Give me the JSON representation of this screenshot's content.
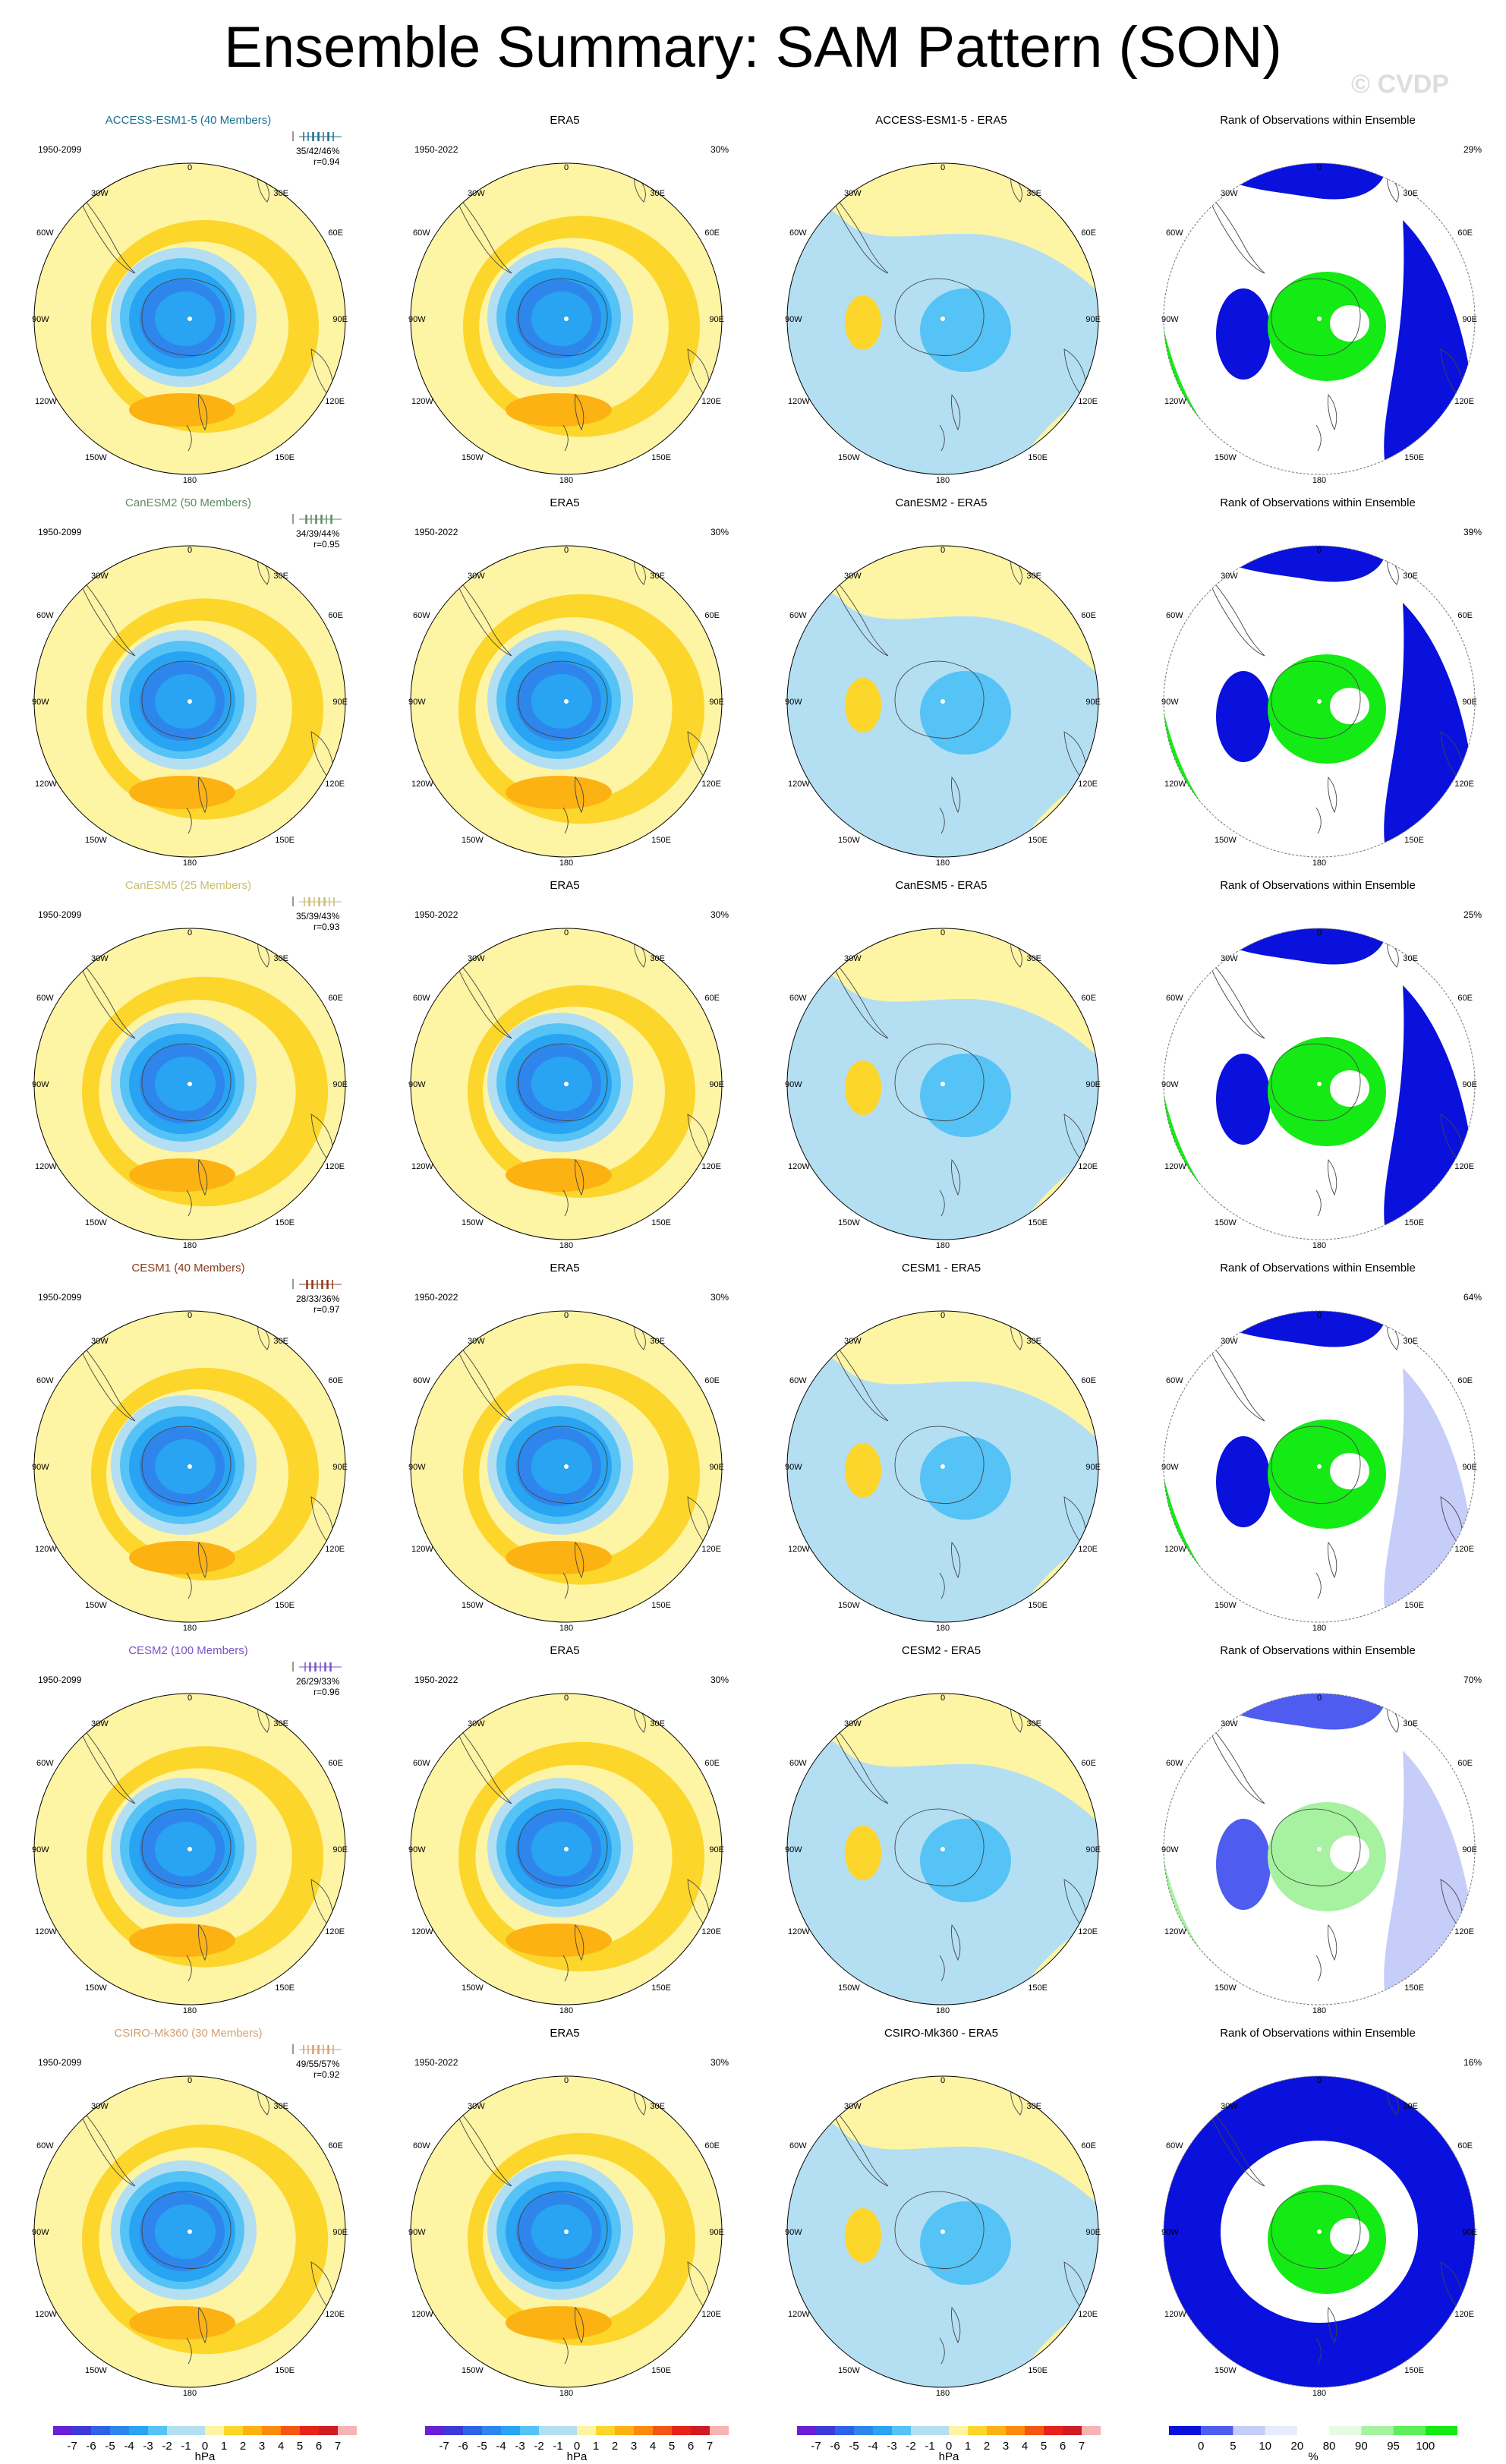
{
  "title": "Ensemble Summary: SAM Pattern (SON)",
  "copyright": "© CVDP",
  "colors": {
    "n7": "#6a1fd6",
    "n6": "#3d3ad9",
    "n5": "#2f62e8",
    "n4": "#2e86ec",
    "n3": "#28a4f2",
    "n2": "#55c3f5",
    "n1": "#b4dff3",
    "p1": "#fdf4a4",
    "p2": "#fcd62b",
    "p3": "#fdb213",
    "p4": "#fb8a0f",
    "p5": "#f45613",
    "p6": "#e6231b",
    "p7": "#cf1c22",
    "p8": "#f7b4b4",
    "rank_blue": "#0a11dc",
    "rank_lblue": "#4e5cf0",
    "rank_vlblue": "#c6cdf8",
    "rank_green": "#14ea14",
    "rank_lgreen": "#a6f2a0",
    "rank_white": "#ffffff"
  },
  "rows": [
    {
      "model": "ACCESS-ESM1-5 (40 Members)",
      "model_color": "#1c6e8f",
      "years": "1950-2099",
      "stats1": "35/42/46%",
      "stats2": "r=0.94",
      "obs_title": "ERA5",
      "obs_years": "1950-2022",
      "obs_pct": "30%",
      "diff_title": "ACCESS-ESM1-5 - ERA5",
      "rank_title": "Rank of Observations within Ensemble",
      "rank_pct": "29%"
    },
    {
      "model": "CanESM2 (50 Members)",
      "model_color": "#5f8b63",
      "years": "1950-2099",
      "stats1": "34/39/44%",
      "stats2": "r=0.95",
      "obs_title": "ERA5",
      "obs_years": "1950-2022",
      "obs_pct": "30%",
      "diff_title": "CanESM2 - ERA5",
      "rank_title": "Rank of Observations within Ensemble",
      "rank_pct": "39%"
    },
    {
      "model": "CanESM5 (25 Members)",
      "model_color": "#c9bf6f",
      "years": "1950-2099",
      "stats1": "35/39/43%",
      "stats2": "r=0.93",
      "obs_title": "ERA5",
      "obs_years": "1950-2022",
      "obs_pct": "30%",
      "diff_title": "CanESM5 - ERA5",
      "rank_title": "Rank of Observations within Ensemble",
      "rank_pct": "25%"
    },
    {
      "model": "CESM1 (40 Members)",
      "model_color": "#8a3b1e",
      "years": "1950-2099",
      "stats1": "28/33/36%",
      "stats2": "r=0.97",
      "obs_title": "ERA5",
      "obs_years": "1950-2022",
      "obs_pct": "30%",
      "diff_title": "CESM1 - ERA5",
      "rank_title": "Rank of Observations within Ensemble",
      "rank_pct": "64%"
    },
    {
      "model": "CESM2 (100 Members)",
      "model_color": "#7b54c6",
      "years": "1950-2099",
      "stats1": "26/29/33%",
      "stats2": "r=0.96",
      "obs_title": "ERA5",
      "obs_years": "1950-2022",
      "obs_pct": "30%",
      "diff_title": "CESM2 - ERA5",
      "rank_title": "Rank of Observations within Ensemble",
      "rank_pct": "70%"
    },
    {
      "model": "CSIRO-Mk360 (30 Members)",
      "model_color": "#d2a06f",
      "years": "1950-2099",
      "stats1": "49/55/57%",
      "stats2": "r=0.92",
      "obs_title": "ERA5",
      "obs_years": "1950-2022",
      "obs_pct": "30%",
      "diff_title": "CSIRO-Mk360 - ERA5",
      "rank_title": "Rank of Observations within Ensemble",
      "rank_pct": "16%"
    }
  ],
  "map_labels": {
    "top": "0",
    "bottom": "180",
    "left": "90W",
    "right": "90E",
    "upper_left": [
      "30W",
      "60W"
    ],
    "upper_right": [
      "30E",
      "60E"
    ],
    "lower_left": [
      "120W",
      "150W"
    ],
    "lower_right": [
      "120E",
      "150E"
    ]
  },
  "colorbar_hpa": {
    "ticks": [
      "-7",
      "-6",
      "-5",
      "-4",
      "-3",
      "-2",
      "-1",
      "0",
      "1",
      "2",
      "3",
      "4",
      "5",
      "6",
      "7"
    ],
    "unit": "hPa"
  },
  "colorbar_rank": {
    "ticks": [
      "0",
      "5",
      "10",
      "20",
      "80",
      "90",
      "95",
      "100"
    ],
    "unit": "%"
  }
}
